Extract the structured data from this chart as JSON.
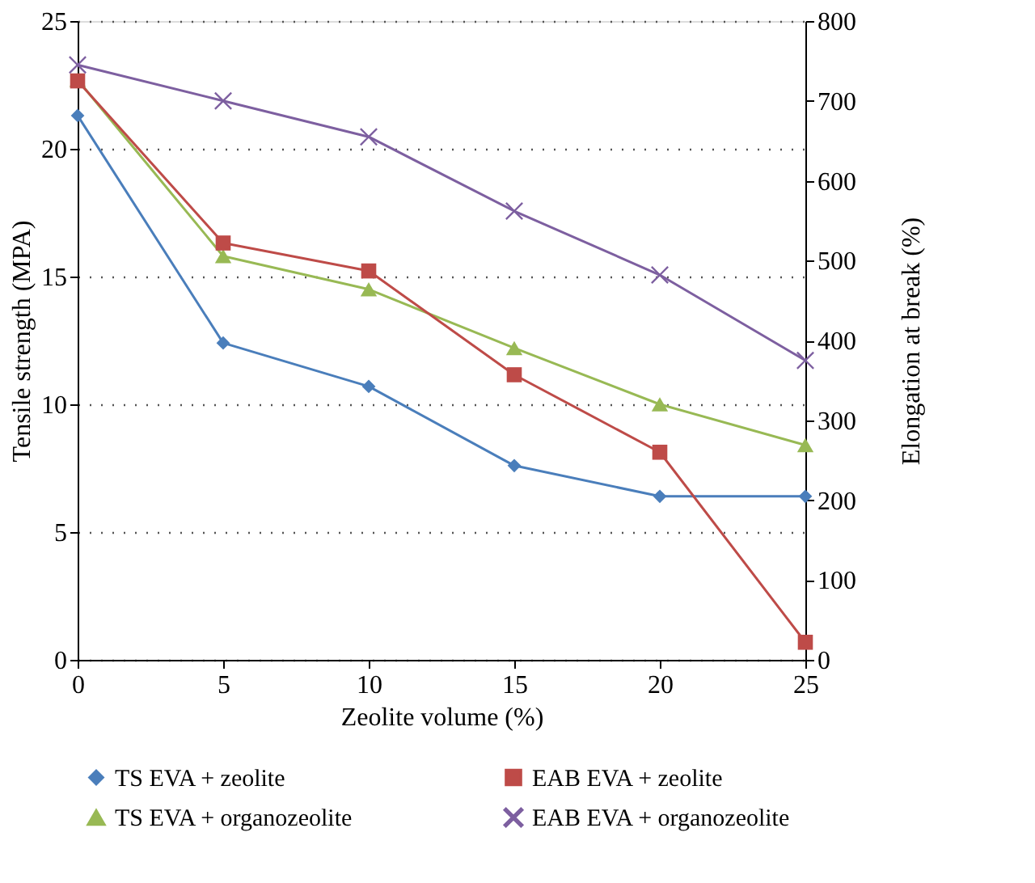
{
  "chart_data": {
    "type": "line",
    "xlabel": "Zeolite volume (%)",
    "ylabel": "Tensile strength (MPA)",
    "y2label": "Elongation at break (%)",
    "x": [
      0,
      5,
      10,
      15,
      20,
      25
    ],
    "xlim": [
      0,
      25
    ],
    "xticks": [
      0,
      5,
      10,
      15,
      20,
      25
    ],
    "ylim": [
      0,
      25
    ],
    "yticks": [
      0,
      5,
      10,
      15,
      20,
      25
    ],
    "y2lim": [
      0,
      800
    ],
    "y2ticks": [
      0,
      100,
      200,
      300,
      400,
      500,
      600,
      700,
      800
    ],
    "grid": "y",
    "legend": "bottom",
    "line_style": "solid",
    "series": [
      {
        "name": "TS EVA + zeolite",
        "color": "#4a7ebb",
        "marker": "diamond",
        "values": [
          21.3,
          12.4,
          10.7,
          7.6,
          6.4,
          6.4
        ]
      },
      {
        "name": "EAB EVA + zeolite",
        "color": "#be4b48",
        "marker": "square",
        "axis": "y2",
        "values": [
          725,
          522,
          487,
          357,
          260,
          22
        ]
      },
      {
        "name": "TS EVA + organozeolite",
        "color": "#98b954",
        "marker": "triangle",
        "values": [
          22.7,
          15.8,
          14.5,
          12.2,
          10.0,
          8.4
        ]
      },
      {
        "name": "EAB EVA + organozeolite",
        "color": "#7d5fa0",
        "marker": "cross",
        "axis": "y2",
        "values": [
          745,
          700,
          655,
          562,
          482,
          375
        ]
      }
    ]
  }
}
